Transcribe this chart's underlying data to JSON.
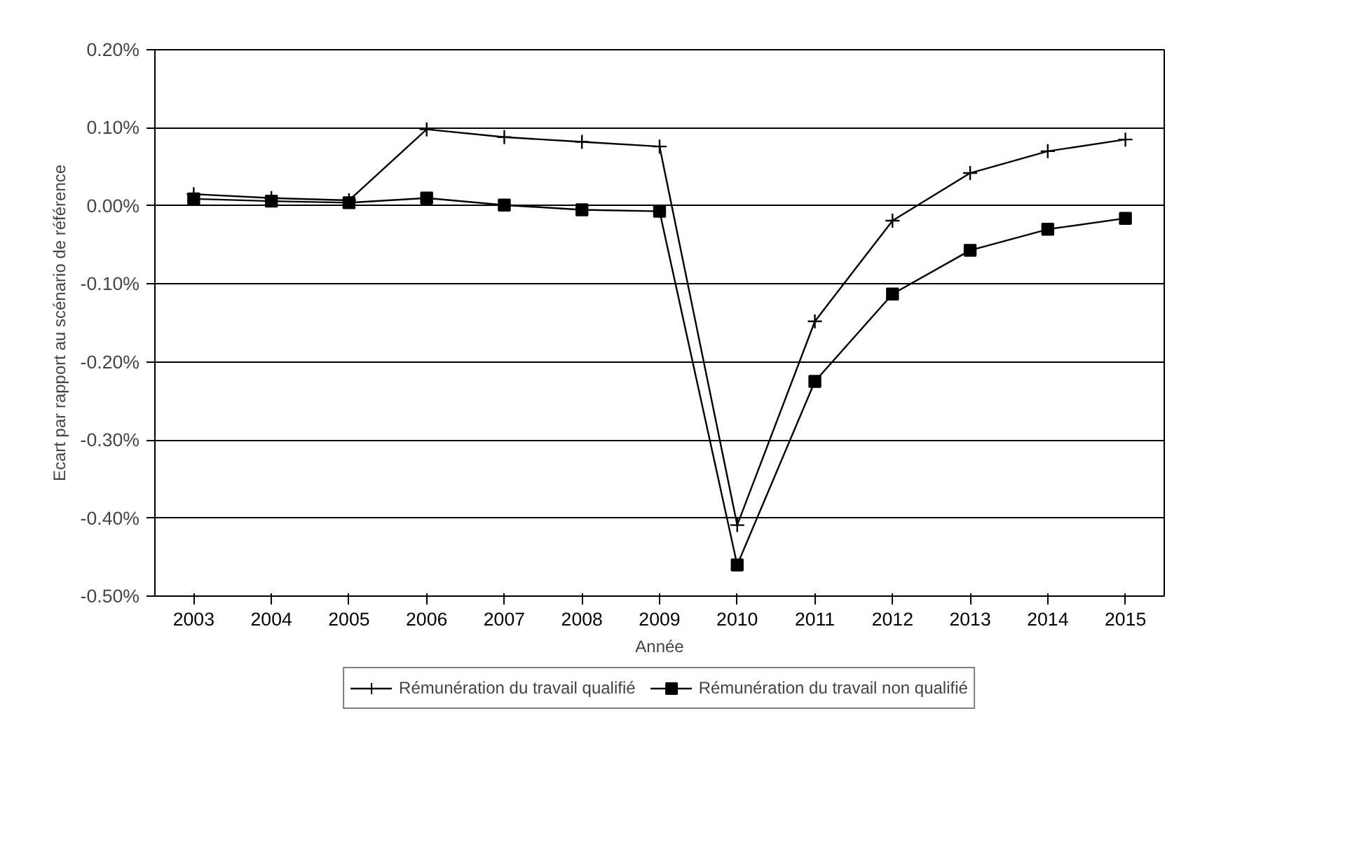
{
  "chart_data": {
    "type": "line",
    "xlabel": "Année",
    "ylabel": "Ecart par rapport au scénario de référence",
    "categories": [
      "2003",
      "2004",
      "2005",
      "2006",
      "2007",
      "2008",
      "2009",
      "2010",
      "2011",
      "2012",
      "2013",
      "2014",
      "2015"
    ],
    "series": [
      {
        "name": "Rémunération du travail qualifié",
        "color": "#000000",
        "marker": "cross",
        "values": [
          0.015,
          0.01,
          0.007,
          0.098,
          0.088,
          0.082,
          0.076,
          -0.409,
          -0.148,
          -0.019,
          0.042,
          0.07,
          0.085
        ]
      },
      {
        "name": "Rémunération du travail non qualifié",
        "color": "#000000",
        "marker": "square",
        "values": [
          0.009,
          0.006,
          0.004,
          0.01,
          0.001,
          -0.005,
          -0.007,
          -0.46,
          -0.225,
          -0.113,
          -0.057,
          -0.03,
          -0.016
        ]
      }
    ],
    "ylim": [
      -0.5,
      0.2
    ],
    "yticks": [
      {
        "value": -0.5,
        "label": "-0.50%"
      },
      {
        "value": -0.4,
        "label": "-0.40%"
      },
      {
        "value": -0.3,
        "label": "-0.30%"
      },
      {
        "value": -0.2,
        "label": "-0.20%"
      },
      {
        "value": -0.1,
        "label": "-0.10%"
      },
      {
        "value": 0.0,
        "label": "0.00%"
      },
      {
        "value": 0.1,
        "label": "0.10%"
      },
      {
        "value": 0.2,
        "label": "0.20%"
      }
    ],
    "grid": "y",
    "legend": "bottom",
    "line_style": "solid"
  }
}
